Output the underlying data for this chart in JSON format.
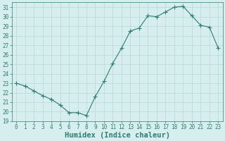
{
  "x": [
    0,
    1,
    2,
    3,
    4,
    5,
    6,
    7,
    8,
    9,
    10,
    11,
    12,
    13,
    14,
    15,
    16,
    17,
    18,
    19,
    20,
    21,
    22,
    23
  ],
  "y": [
    23,
    22.7,
    22.2,
    21.7,
    21.3,
    20.7,
    19.9,
    19.9,
    19.6,
    21.6,
    23.2,
    25.1,
    26.7,
    28.5,
    28.8,
    30.1,
    30.0,
    30.5,
    31.0,
    31.1,
    30.1,
    29.1,
    28.9,
    26.7
  ],
  "line_color": "#2e7d6e",
  "marker": "+",
  "marker_size": 4,
  "bg_color": "#d6efee",
  "grid_color": "#b8d8d5",
  "xlabel": "Humidex (Indice chaleur)",
  "xlim": [
    -0.5,
    23.5
  ],
  "ylim": [
    19,
    31.5
  ],
  "yticks": [
    19,
    20,
    21,
    22,
    23,
    24,
    25,
    26,
    27,
    28,
    29,
    30,
    31
  ],
  "xticks": [
    0,
    1,
    2,
    3,
    4,
    5,
    6,
    7,
    8,
    9,
    10,
    11,
    12,
    13,
    14,
    15,
    16,
    17,
    18,
    19,
    20,
    21,
    22,
    23
  ],
  "tick_fontsize": 5.5,
  "label_fontsize": 7.5,
  "linewidth": 0.8,
  "marker_linewidth": 0.8
}
